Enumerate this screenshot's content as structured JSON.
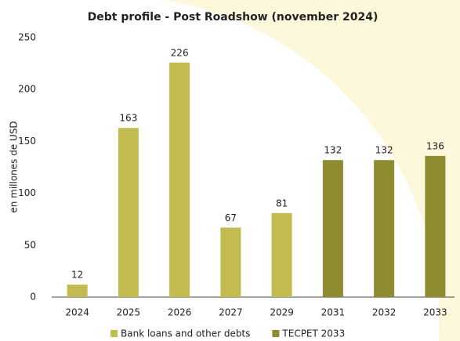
{
  "chart_data": {
    "type": "bar",
    "title": "Debt profile - Post Roadshow (november 2024)",
    "y_label": "en millones de USD",
    "categories": [
      "2024",
      "2025",
      "2026",
      "2027",
      "2029",
      "2031",
      "2032",
      "2033"
    ],
    "series": [
      {
        "name": "Bank loans and other debts",
        "color": "#c2bb4f",
        "values": [
          12,
          163,
          226,
          67,
          81,
          null,
          null,
          null
        ]
      },
      {
        "name": "TECPET 2033",
        "color": "#8e8b30",
        "values": [
          null,
          null,
          null,
          null,
          null,
          132,
          132,
          136
        ]
      }
    ],
    "ylim": [
      0,
      250
    ],
    "yticks": [
      0,
      50,
      100,
      150,
      200,
      250
    ],
    "grid": false,
    "legend": "bottom"
  }
}
